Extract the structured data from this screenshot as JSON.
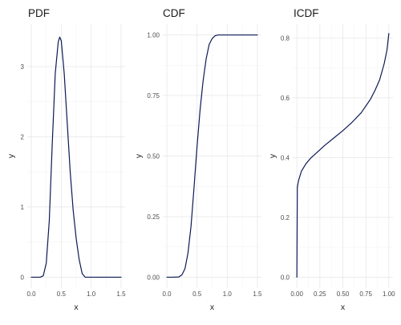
{
  "colors": {
    "series": "#0d1a55",
    "grid_major": "#e6e6e6",
    "grid_minor": "#f2f2f2",
    "background": "#ffffff"
  },
  "chart_data": [
    {
      "type": "line",
      "title": "PDF",
      "xlabel": "x",
      "ylabel": "y",
      "xlim": [
        0,
        1.5
      ],
      "ylim": [
        0,
        3.45
      ],
      "xticks": [
        0,
        0.5,
        1,
        1.5
      ],
      "xtick_labels": [
        "0.0",
        "0.5",
        "1.0",
        "1.5"
      ],
      "yticks": [
        0,
        1,
        2,
        3
      ],
      "ytick_labels": [
        "0",
        "1",
        "2",
        "3"
      ],
      "grid": true,
      "series": [
        {
          "x": [
            0,
            0.05,
            0.1,
            0.15,
            0.2,
            0.25,
            0.3,
            0.35,
            0.4,
            0.45,
            0.475,
            0.5,
            0.55,
            0.6,
            0.65,
            0.7,
            0.75,
            0.8,
            0.85,
            0.9,
            1.0,
            1.25,
            1.5
          ],
          "y": [
            0,
            0,
            0,
            0,
            0.02,
            0.2,
            0.8,
            1.9,
            2.9,
            3.35,
            3.42,
            3.37,
            2.9,
            2.2,
            1.5,
            0.95,
            0.55,
            0.25,
            0.05,
            0,
            0,
            0,
            0
          ]
        }
      ]
    },
    {
      "type": "line",
      "title": "CDF",
      "xlabel": "x",
      "ylabel": "y",
      "xlim": [
        0,
        1.5
      ],
      "ylim": [
        0,
        1.0
      ],
      "xticks": [
        0,
        0.5,
        1,
        1.5
      ],
      "xtick_labels": [
        "0.0",
        "0.5",
        "1.0",
        "1.5"
      ],
      "yticks": [
        0,
        0.25,
        0.5,
        0.75,
        1.0
      ],
      "ytick_labels": [
        "0.00",
        "0.25",
        "0.50",
        "0.75",
        "1.00"
      ],
      "grid": true,
      "series": [
        {
          "x": [
            0,
            0.1,
            0.2,
            0.25,
            0.3,
            0.35,
            0.4,
            0.45,
            0.5,
            0.55,
            0.6,
            0.65,
            0.7,
            0.75,
            0.8,
            0.85,
            0.9,
            1.0,
            1.25,
            1.5
          ],
          "y": [
            0,
            0,
            0.001,
            0.01,
            0.035,
            0.1,
            0.21,
            0.37,
            0.54,
            0.69,
            0.81,
            0.9,
            0.96,
            0.985,
            0.997,
            1.0,
            1.0,
            1.0,
            1.0,
            1.0
          ]
        }
      ]
    },
    {
      "type": "line",
      "title": "ICDF",
      "xlabel": "x",
      "ylabel": "y",
      "xlim": [
        0,
        1.0
      ],
      "ylim": [
        0,
        0.81
      ],
      "xticks": [
        0,
        0.25,
        0.5,
        0.75,
        1.0
      ],
      "xtick_labels": [
        "0.00",
        "0.25",
        "0.50",
        "0.75",
        "1.00"
      ],
      "yticks": [
        0,
        0.2,
        0.4,
        0.6,
        0.8
      ],
      "ytick_labels": [
        "0.0",
        "0.2",
        "0.4",
        "0.6",
        "0.8"
      ],
      "grid": true,
      "series": [
        {
          "x": [
            0,
            0.005,
            0.01,
            0.02,
            0.05,
            0.1,
            0.15,
            0.2,
            0.3,
            0.4,
            0.5,
            0.6,
            0.7,
            0.8,
            0.85,
            0.9,
            0.95,
            0.98,
            1.0
          ],
          "y": [
            0,
            0.3,
            0.31,
            0.325,
            0.355,
            0.38,
            0.398,
            0.412,
            0.44,
            0.465,
            0.49,
            0.518,
            0.55,
            0.595,
            0.625,
            0.66,
            0.715,
            0.76,
            0.815
          ]
        }
      ]
    }
  ]
}
